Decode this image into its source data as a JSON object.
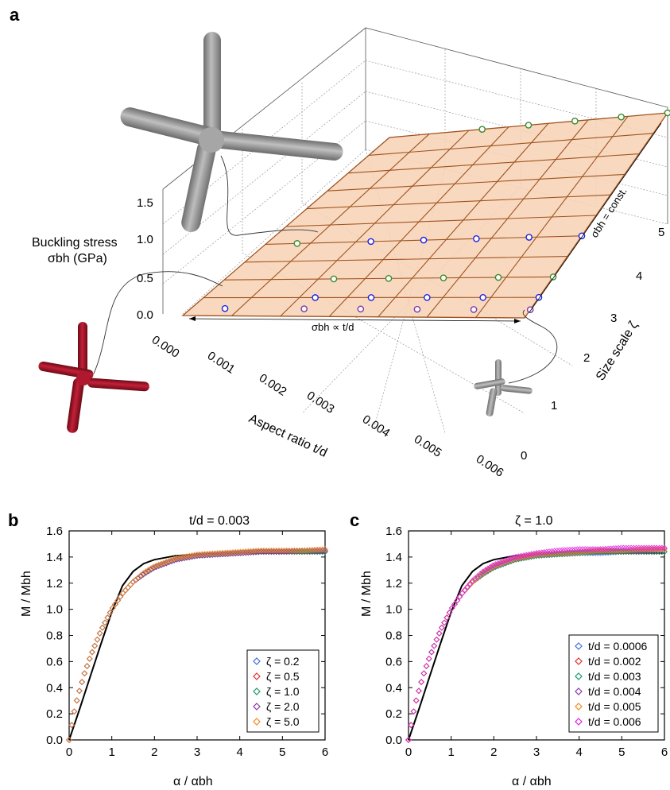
{
  "panel_a": {
    "letter": "a",
    "z_label_1": "Buckling stress",
    "z_label_2": "σbh (GPa)",
    "z_ticks": [
      "0.0",
      "0.5",
      "1.0",
      "1.5"
    ],
    "x_label": "Aspect ratio t/d",
    "x_ticks": [
      "0.000",
      "0.001",
      "0.002",
      "0.003",
      "0.004",
      "0.005",
      "0.006"
    ],
    "y_label": "Size scale ζ",
    "y_ticks": [
      "0",
      "1",
      "2",
      "3",
      "4",
      "5"
    ],
    "ann_proportional": "σbh ∝ t/d",
    "ann_const": "σbh = const.",
    "colors": {
      "plane_fill": "#f7d2b5",
      "plane_line": "#a0521e",
      "frame": "#555555"
    }
  },
  "panel_b": {
    "letter": "b",
    "title": "t/d = 0.003",
    "ylabel": "M / Mbh",
    "xlabel": "α / αbh"
  },
  "panel_c": {
    "letter": "c",
    "title": "ζ = 1.0",
    "ylabel": "M / Mbh",
    "xlabel": "α / αbh"
  },
  "chart_data": [
    {
      "type": "surface",
      "panel": "a",
      "title": "",
      "xlabel": "Aspect ratio t/d",
      "ylabel": "Size scale ζ",
      "zlabel": "Buckling stress σbh (GPa)",
      "xlim": [
        0,
        0.006
      ],
      "ylim": [
        0,
        5
      ],
      "zlim": [
        0,
        1.5
      ],
      "plane": "σbh proportional to t/d, constant in ζ",
      "points": [
        {
          "x": 0.0006,
          "y": 0.2
        },
        {
          "x": 0.0006,
          "y": 2.0
        },
        {
          "x": 0.002,
          "y": 0.2
        },
        {
          "x": 0.002,
          "y": 0.5
        },
        {
          "x": 0.002,
          "y": 1.0
        },
        {
          "x": 0.002,
          "y": 2.0
        },
        {
          "x": 0.002,
          "y": 5.0
        },
        {
          "x": 0.003,
          "y": 0.2
        },
        {
          "x": 0.003,
          "y": 0.5
        },
        {
          "x": 0.003,
          "y": 1.0
        },
        {
          "x": 0.003,
          "y": 2.0
        },
        {
          "x": 0.003,
          "y": 5.0
        },
        {
          "x": 0.004,
          "y": 0.2
        },
        {
          "x": 0.004,
          "y": 0.5
        },
        {
          "x": 0.004,
          "y": 1.0
        },
        {
          "x": 0.004,
          "y": 2.0
        },
        {
          "x": 0.004,
          "y": 5.0
        },
        {
          "x": 0.005,
          "y": 0.2
        },
        {
          "x": 0.005,
          "y": 0.5
        },
        {
          "x": 0.005,
          "y": 1.0
        },
        {
          "x": 0.005,
          "y": 2.0
        },
        {
          "x": 0.005,
          "y": 5.0
        },
        {
          "x": 0.006,
          "y": 0.2
        },
        {
          "x": 0.006,
          "y": 0.5
        },
        {
          "x": 0.006,
          "y": 1.0
        },
        {
          "x": 0.006,
          "y": 2.0
        },
        {
          "x": 0.006,
          "y": 5.0
        }
      ]
    },
    {
      "type": "scatter",
      "panel": "b",
      "title": "t/d = 0.003",
      "xlabel": "α / αbh",
      "ylabel": "M / Mbh",
      "xlim": [
        0,
        6
      ],
      "ylim": [
        0,
        1.6
      ],
      "xticks": [
        0,
        1,
        2,
        3,
        4,
        5,
        6
      ],
      "yticks": [
        0.0,
        0.2,
        0.4,
        0.6,
        0.8,
        1.0,
        1.2,
        1.4,
        1.6
      ],
      "legend_position": "bottom-right",
      "reference_curve": {
        "x": [
          0,
          0.25,
          0.5,
          0.75,
          1.0,
          1.25,
          1.5,
          1.75,
          2.0,
          2.5,
          3.0,
          4.0,
          5.0,
          6.0
        ],
        "y": [
          0,
          0.24,
          0.49,
          0.74,
          0.98,
          1.18,
          1.29,
          1.35,
          1.38,
          1.41,
          1.42,
          1.43,
          1.43,
          1.43
        ]
      },
      "x": [
        0,
        0.1,
        0.2,
        0.35,
        0.5,
        0.75,
        1.0,
        1.25,
        1.5,
        1.75,
        2.0,
        2.5,
        3.0,
        3.5,
        4.0,
        4.5,
        5.0,
        5.5,
        6.0
      ],
      "series": [
        {
          "name": "ζ = 0.2",
          "color": "#3f6fd8",
          "values": [
            0,
            0.19,
            0.33,
            0.5,
            0.64,
            0.84,
            1.0,
            1.12,
            1.21,
            1.27,
            1.32,
            1.38,
            1.41,
            1.42,
            1.43,
            1.44,
            1.44,
            1.44,
            1.44
          ]
        },
        {
          "name": "ζ = 0.5",
          "color": "#e0302a",
          "values": [
            0,
            0.19,
            0.33,
            0.5,
            0.64,
            0.84,
            1.0,
            1.12,
            1.21,
            1.27,
            1.32,
            1.38,
            1.41,
            1.42,
            1.43,
            1.44,
            1.44,
            1.44,
            1.44
          ]
        },
        {
          "name": "ζ = 1.0",
          "color": "#1a9a6c",
          "values": [
            0,
            0.19,
            0.33,
            0.5,
            0.64,
            0.84,
            1.0,
            1.12,
            1.21,
            1.27,
            1.32,
            1.38,
            1.41,
            1.42,
            1.43,
            1.44,
            1.44,
            1.44,
            1.44
          ]
        },
        {
          "name": "ζ = 2.0",
          "color": "#8a3aa8",
          "values": [
            0,
            0.19,
            0.33,
            0.5,
            0.64,
            0.84,
            1.0,
            1.12,
            1.21,
            1.27,
            1.32,
            1.38,
            1.41,
            1.42,
            1.43,
            1.44,
            1.44,
            1.45,
            1.45
          ]
        },
        {
          "name": "ζ = 5.0",
          "color": "#f08a20",
          "values": [
            0,
            0.19,
            0.33,
            0.5,
            0.64,
            0.84,
            1.0,
            1.12,
            1.21,
            1.28,
            1.33,
            1.39,
            1.42,
            1.43,
            1.44,
            1.45,
            1.45,
            1.45,
            1.46
          ]
        }
      ]
    },
    {
      "type": "scatter",
      "panel": "c",
      "title": "ζ = 1.0",
      "xlabel": "α / αbh",
      "ylabel": "M / Mbh",
      "xlim": [
        0,
        6
      ],
      "ylim": [
        0,
        1.6
      ],
      "xticks": [
        0,
        1,
        2,
        3,
        4,
        5,
        6
      ],
      "yticks": [
        0.0,
        0.2,
        0.4,
        0.6,
        0.8,
        1.0,
        1.2,
        1.4,
        1.6
      ],
      "legend_position": "bottom-right",
      "reference_curve": {
        "x": [
          0,
          0.25,
          0.5,
          0.75,
          1.0,
          1.25,
          1.5,
          1.75,
          2.0,
          2.5,
          3.0,
          4.0,
          5.0,
          6.0
        ],
        "y": [
          0,
          0.24,
          0.49,
          0.74,
          0.98,
          1.18,
          1.29,
          1.35,
          1.38,
          1.41,
          1.42,
          1.43,
          1.43,
          1.43
        ]
      },
      "x": [
        0,
        0.1,
        0.2,
        0.35,
        0.5,
        0.75,
        1.0,
        1.25,
        1.5,
        1.75,
        2.0,
        2.5,
        3.0,
        3.5,
        4.0,
        4.5,
        5.0,
        5.5,
        6.0
      ],
      "series": [
        {
          "name": "t/d = 0.0006",
          "color": "#3f6fd8",
          "values": [
            0,
            0.19,
            0.33,
            0.5,
            0.64,
            0.84,
            1.0,
            1.12,
            1.21,
            1.27,
            1.32,
            1.38,
            1.41,
            1.42,
            1.43,
            1.43,
            1.44,
            1.44,
            1.44
          ]
        },
        {
          "name": "t/d = 0.002",
          "color": "#e0302a",
          "values": [
            0,
            0.19,
            0.33,
            0.5,
            0.64,
            0.84,
            1.0,
            1.12,
            1.21,
            1.27,
            1.32,
            1.38,
            1.41,
            1.42,
            1.43,
            1.44,
            1.44,
            1.44,
            1.44
          ]
        },
        {
          "name": "t/d = 0.003",
          "color": "#1a9a6c",
          "values": [
            0,
            0.19,
            0.33,
            0.5,
            0.64,
            0.84,
            1.0,
            1.12,
            1.21,
            1.27,
            1.32,
            1.38,
            1.41,
            1.42,
            1.43,
            1.44,
            1.44,
            1.44,
            1.44
          ]
        },
        {
          "name": "t/d = 0.004",
          "color": "#8a3aa8",
          "values": [
            0,
            0.19,
            0.33,
            0.5,
            0.64,
            0.84,
            1.0,
            1.12,
            1.21,
            1.28,
            1.33,
            1.39,
            1.42,
            1.43,
            1.44,
            1.45,
            1.45,
            1.45,
            1.46
          ]
        },
        {
          "name": "t/d = 0.005",
          "color": "#f08a20",
          "values": [
            0,
            0.19,
            0.33,
            0.5,
            0.64,
            0.84,
            1.0,
            1.12,
            1.21,
            1.28,
            1.33,
            1.39,
            1.42,
            1.43,
            1.44,
            1.45,
            1.45,
            1.46,
            1.46
          ]
        },
        {
          "name": "t/d = 0.006",
          "color": "#e020e0",
          "values": [
            0,
            0.19,
            0.33,
            0.5,
            0.64,
            0.84,
            1.0,
            1.12,
            1.22,
            1.29,
            1.34,
            1.4,
            1.43,
            1.45,
            1.46,
            1.46,
            1.47,
            1.47,
            1.47
          ]
        }
      ]
    }
  ]
}
